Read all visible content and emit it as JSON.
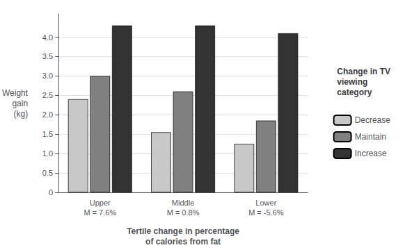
{
  "chart_data": {
    "type": "bar",
    "categories": [
      "Upper\nM = 7.6%",
      "Middle\nM = 0.8%",
      "Lower\nM = -5.6%"
    ],
    "series": [
      {
        "name": "Decrease",
        "color": "#c8c8c8",
        "values": [
          2.4,
          1.55,
          1.25
        ]
      },
      {
        "name": "Maintain",
        "color": "#808080",
        "values": [
          3.0,
          2.6,
          1.85
        ]
      },
      {
        "name": "Increase",
        "color": "#333333",
        "values": [
          4.3,
          4.3,
          4.1
        ]
      }
    ],
    "ylabel": "Weight\ngain\n(kg)",
    "xlabel": "Tertile change in percentage\nof calories from fat",
    "legend_title": "Change in TV\nviewing\ncategory",
    "ylim": [
      0,
      4.6
    ],
    "yticks": [
      0,
      0.5,
      {
        "value": 1.0,
        "label": "1.0"
      },
      1.5,
      {
        "value": 2.0,
        "label": "2.0"
      },
      2.5,
      {
        "value": 3.0,
        "label": "3.0"
      },
      3.5,
      {
        "value": 4.0,
        "label": "4.0"
      }
    ],
    "grid": true,
    "legend": "right"
  }
}
